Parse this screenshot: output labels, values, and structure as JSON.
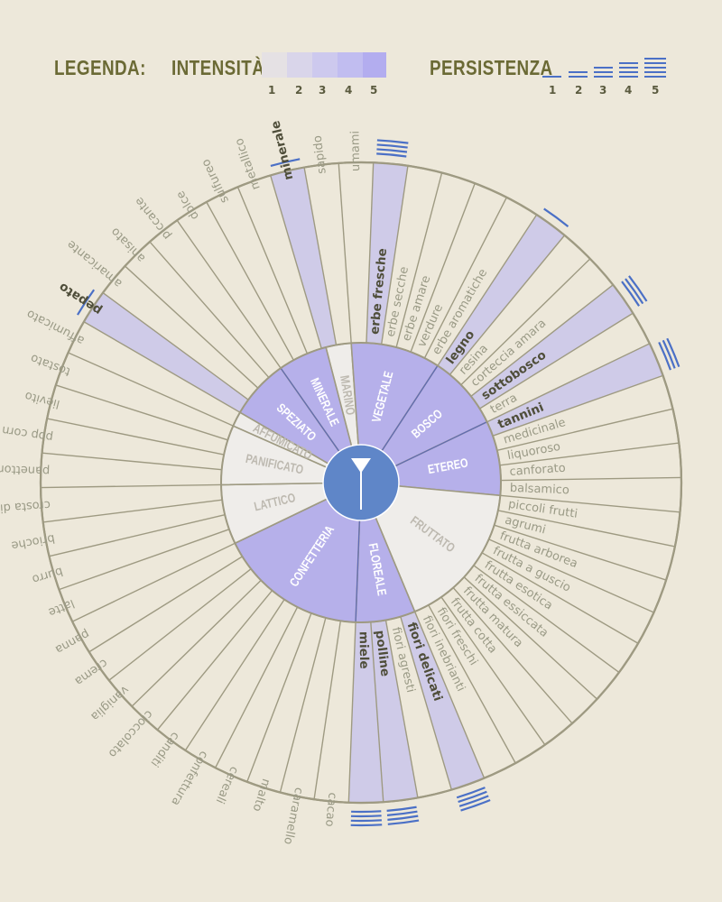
{
  "legend": {
    "title": "LEGENDA:",
    "intensity_label": "INTENSITÀ",
    "intensity_levels": [
      "1",
      "2",
      "3",
      "4",
      "5"
    ],
    "persistence_label": "PERSISTENZA",
    "persistence_levels": [
      "1",
      "2",
      "3",
      "4",
      "5"
    ],
    "intensity_colors": [
      "#e5e1e4",
      "#d9d5ea",
      "#cdc9ee",
      "#c1bdf0",
      "#b3adef"
    ]
  },
  "colors": {
    "background": "#ede8da",
    "line": "#9e9a82",
    "inner_purple": "#b6b0ea",
    "inner_light": "#efedea",
    "center_blue": "#5f86c8",
    "persistence_blue": "#4b70c6",
    "highlight_segment": "#cfcbe8",
    "term_text": "#9a9a86",
    "term_text_bold": "#4f4e3a",
    "label_light_text": "#bdb9b0"
  },
  "wheel": {
    "inner_categories": [
      {
        "label": "MARINO",
        "purple": false
      },
      {
        "label": "VEGETALE",
        "purple": true
      },
      {
        "label": "BOSCO",
        "purple": true
      },
      {
        "label": "ETEREO",
        "purple": true
      },
      {
        "label": "FRUTTATO",
        "purple": false
      },
      {
        "label": "FLOREALE",
        "purple": true
      },
      {
        "label": "CONFETTERIA",
        "purple": true
      },
      {
        "label": "LATTICO",
        "purple": false
      },
      {
        "label": "PANIFICATO",
        "purple": false
      },
      {
        "label": "AFFUMICATO",
        "purple": false
      },
      {
        "label": "SPEZIATO",
        "purple": true
      },
      {
        "label": "MINERALE",
        "purple": true
      }
    ],
    "terms": [
      {
        "label": "umami"
      },
      {
        "label": "erbe fresche",
        "highlighted": true,
        "persistence": 4
      },
      {
        "label": "erbe secche"
      },
      {
        "label": "erbe amare"
      },
      {
        "label": "verdure"
      },
      {
        "label": "erbe aromatiche"
      },
      {
        "label": "legno",
        "highlighted": true,
        "persistence": 1
      },
      {
        "label": "resina"
      },
      {
        "label": "corteccia amara"
      },
      {
        "label": "sottobosco",
        "highlighted": true,
        "persistence": 3
      },
      {
        "label": "terra"
      },
      {
        "label": "tannini",
        "highlighted": true,
        "persistence": 3
      },
      {
        "label": "medicinale"
      },
      {
        "label": "liquoroso"
      },
      {
        "label": "canforato"
      },
      {
        "label": "balsamico"
      },
      {
        "label": "piccoli frutti"
      },
      {
        "label": "agrumi"
      },
      {
        "label": "frutta arborea"
      },
      {
        "label": "frutta a guscio"
      },
      {
        "label": "frutta esotica"
      },
      {
        "label": "frutta essiccata"
      },
      {
        "label": "frutta matura"
      },
      {
        "label": "frutta cotta"
      },
      {
        "label": "fiori freschi"
      },
      {
        "label": "fiori inebrianti"
      },
      {
        "label": "fiori delicati",
        "highlighted": true,
        "persistence": 4
      },
      {
        "label": "fiori agresti"
      },
      {
        "label": "polline",
        "highlighted": true,
        "persistence": 4
      },
      {
        "label": "miele",
        "highlighted": true,
        "persistence": 4
      },
      {
        "label": "cacao"
      },
      {
        "label": "caramello"
      },
      {
        "label": "malto"
      },
      {
        "label": "cereali"
      },
      {
        "label": "confettura"
      },
      {
        "label": "canditi"
      },
      {
        "label": "cioccolato"
      },
      {
        "label": "vaniglia"
      },
      {
        "label": "crema"
      },
      {
        "label": "panna"
      },
      {
        "label": "latte"
      },
      {
        "label": "burro"
      },
      {
        "label": "brioche"
      },
      {
        "label": "crosta di pane"
      },
      {
        "label": "panettone"
      },
      {
        "label": "pop corn"
      },
      {
        "label": "lievito"
      },
      {
        "label": "tostato"
      },
      {
        "label": "affumicato"
      },
      {
        "label": "pepato",
        "highlighted": true,
        "persistence": 1
      },
      {
        "label": "amaricante"
      },
      {
        "label": "anisato"
      },
      {
        "label": "piccante"
      },
      {
        "label": "dolce"
      },
      {
        "label": "sulfureo"
      },
      {
        "label": "metallico"
      },
      {
        "label": "minerale",
        "highlighted": true,
        "persistence": 1
      },
      {
        "label": "sapido"
      }
    ]
  }
}
